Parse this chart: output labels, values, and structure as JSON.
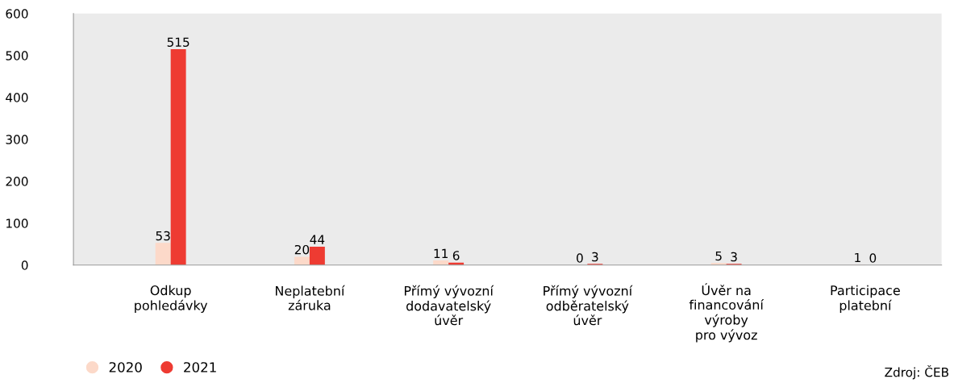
{
  "chart_data": {
    "type": "bar",
    "categories": [
      "Odkup\npohledávky",
      "Neplatební\nzáruka",
      "Přímý vývozní\ndodavatelský\núvěr",
      "Přímý vývozní\nodběratelský\núvěr",
      "Úvěr na\nfinancování\nvýroby\npro vývoz",
      "Participace\nplatební"
    ],
    "series": [
      {
        "name": "2020",
        "color": "#fcd9c9",
        "values": [
          53,
          20,
          11,
          0,
          5,
          1
        ]
      },
      {
        "name": "2021",
        "color": "#ee3b32",
        "values": [
          515,
          44,
          6,
          3,
          3,
          0
        ]
      }
    ],
    "ylim": [
      0,
      600
    ],
    "yticks": [
      0,
      100,
      200,
      300,
      400,
      500,
      600
    ],
    "grid": false,
    "legend": "bottom left",
    "data_labels": true,
    "annotations": [
      "Zdroj: ČEB"
    ]
  }
}
